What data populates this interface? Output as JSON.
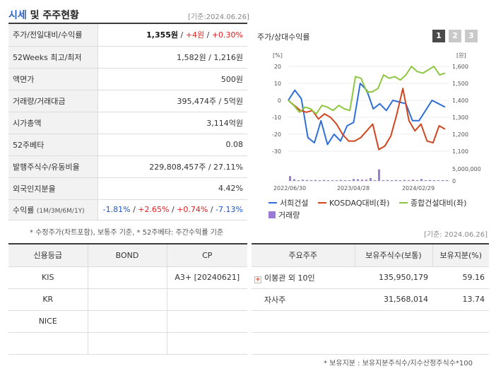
{
  "header": {
    "title_accent": "시세",
    "title_rest": " 및 주주현황",
    "date_label": "[기준:2024.06.26]"
  },
  "info": {
    "price_label": "주가/전일대비/수익률",
    "price_value": "1,355원",
    "price_change": "+4원",
    "price_rate": "+0.30%",
    "week52_label": "52Weeks 최고/최저",
    "week52_value": "1,582원 / 1,216원",
    "par_label": "액면가",
    "par_value": "500원",
    "volume_label": "거래량/거래대금",
    "volume_value": "395,474주 / 5억원",
    "mcap_label": "시가총액",
    "mcap_value": "3,114억원",
    "beta_label": "52주베타",
    "beta_value": "0.08",
    "shares_label": "발행주식수/유동비율",
    "shares_value": "229,808,457주 / 27.11%",
    "foreign_label": "외국인지분율",
    "foreign_value": "4.42%",
    "return_label": "수익률",
    "return_label_sub": "(1M/3M/6M/1Y)",
    "return_1m": "-1.81%",
    "return_3m": "+2.65%",
    "return_6m": "+0.74%",
    "return_1y": "-7.13%",
    "sep": "/",
    "note": "* 수정주가(차트포함), 보통주 기준, * 52주베타: 주간수익률 기준"
  },
  "chart": {
    "title": "주가/상대수익률",
    "tabs": [
      "1",
      "2",
      "3"
    ],
    "date_label": "[기준: 2024.06.26]"
  },
  "chart_data": {
    "type": "line",
    "left_axis": {
      "unit": "[%]",
      "ticks": [
        20,
        10,
        0,
        -10,
        -20,
        -30
      ],
      "range": [
        -30,
        20
      ]
    },
    "right_axis": {
      "unit": "[원]",
      "ticks": [
        "1,600",
        "1,500",
        "1,400",
        "1,300",
        "1,200",
        "1,100"
      ],
      "range": [
        1100,
        1600
      ]
    },
    "volume_axis": {
      "ticks": [
        "5,000,000",
        "0"
      ],
      "range": [
        0,
        5000000
      ]
    },
    "x_tick_labels": [
      "2022/06/30",
      "2023/04/28",
      "2024/02/29"
    ],
    "series": [
      {
        "name": "서희건설",
        "color": "#2f6fd6",
        "axis": "left",
        "values": [
          0,
          6,
          1,
          -22,
          -25,
          -12,
          -26,
          -20,
          -24,
          -15,
          -13,
          10,
          6,
          -5,
          -2,
          -6,
          0,
          -1,
          -2,
          -12,
          -12,
          -6,
          0,
          -2,
          -4
        ]
      },
      {
        "name": "KOSDAQ대비(좌)",
        "color": "#d2461f",
        "axis": "left",
        "values": [
          0,
          -3,
          -6,
          -7,
          -6,
          -11,
          -8,
          -10,
          -14,
          -20,
          -24,
          -24,
          -22,
          -18,
          -14,
          -29,
          -27,
          -21,
          -8,
          7,
          -12,
          -18,
          -14,
          -24,
          -25,
          -15,
          -17
        ]
      },
      {
        "name": "종합건설대비(좌)",
        "color": "#8dc63f",
        "axis": "left",
        "values": [
          0,
          -3,
          -7,
          -4,
          -5,
          -8,
          -3,
          -4,
          -6,
          -3,
          -5,
          -6,
          14,
          13,
          5,
          5,
          7,
          15,
          13,
          14,
          12,
          15,
          20,
          17,
          16,
          18,
          20,
          15,
          16
        ]
      }
    ],
    "volume": {
      "name": "거래량",
      "color": "#9b7bd6",
      "values": [
        2000000,
        700000,
        300000,
        500000,
        400000,
        300000,
        400000,
        300000,
        400000,
        300000,
        300000,
        300000,
        400000,
        300000,
        300000,
        800000,
        700000,
        500000,
        500000,
        1200000,
        300000,
        4800000,
        300000,
        400000,
        300000,
        400000,
        300000,
        400000,
        300000,
        500000,
        300000,
        800000,
        300000,
        400000,
        300000,
        300000,
        300000,
        300000
      ]
    }
  },
  "legend": [
    "서희건설",
    "KOSDAQ대비(좌)",
    "종합건설대비(좌)",
    "거래량"
  ],
  "credit": {
    "headers": [
      "신용등급",
      "BOND",
      "CP"
    ],
    "rows": [
      {
        "agency": "KIS",
        "bond": "",
        "cp": "A3+ [20240621]"
      },
      {
        "agency": "KR",
        "bond": "",
        "cp": ""
      },
      {
        "agency": "NICE",
        "bond": "",
        "cp": ""
      },
      {
        "agency": "",
        "bond": "",
        "cp": ""
      }
    ]
  },
  "holders": {
    "headers": [
      "주요주주",
      "보유주식수(보통)",
      "보유지분(%)"
    ],
    "rows": [
      {
        "name": "이봉관 외 10인",
        "shares": "135,950,179",
        "ratio": "59.16"
      },
      {
        "name": "자사주",
        "shares": "31,568,014",
        "ratio": "13.74"
      },
      {
        "name": "",
        "shares": "",
        "ratio": ""
      },
      {
        "name": "",
        "shares": "",
        "ratio": ""
      }
    ],
    "note": "* 보유지분 : 보유지분주식수/지수산정주식수*100"
  }
}
